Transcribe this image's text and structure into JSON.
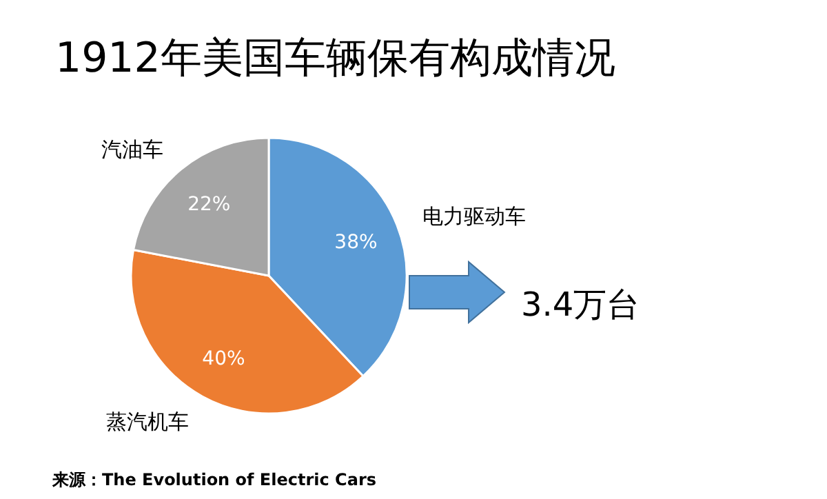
{
  "chart_data": {
    "type": "pie",
    "title": "1912年美国车辆保有构成情况",
    "categories": [
      "电力驱动车",
      "蒸汽机车",
      "汽油车"
    ],
    "values": [
      38,
      40,
      22
    ],
    "colors": [
      "#5b9bd5",
      "#ed7d31",
      "#a5a5a5"
    ],
    "value_labels": [
      "38%",
      "40%",
      "22%"
    ],
    "annotations": [
      "3.4万台",
      "来源：The Evolution of Electric Cars"
    ]
  }
}
